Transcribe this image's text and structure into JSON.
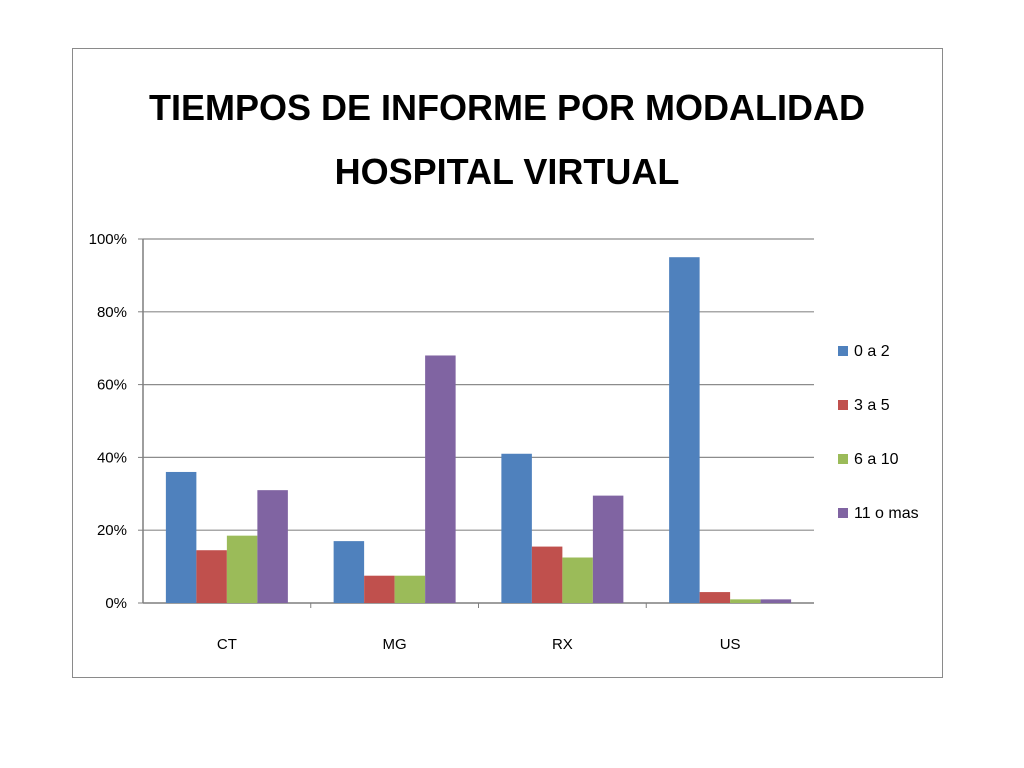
{
  "chart_data": {
    "type": "bar",
    "title_lines": [
      "TIEMPOS DE INFORME POR MODALIDAD",
      "HOSPITAL VIRTUAL"
    ],
    "categories": [
      "CT",
      "MG",
      "RX",
      "US"
    ],
    "series": [
      {
        "name": "0 a 2",
        "color": "#4f81bd",
        "values": [
          36,
          17,
          41,
          95
        ]
      },
      {
        "name": "3 a 5",
        "color": "#c0504d",
        "values": [
          14.5,
          7.5,
          15.5,
          3
        ]
      },
      {
        "name": "6 a 10",
        "color": "#9bbb59",
        "values": [
          18.5,
          7.5,
          12.5,
          1
        ]
      },
      {
        "name": "11 o mas",
        "color": "#8064a2",
        "values": [
          31,
          68,
          29.5,
          1
        ]
      }
    ],
    "y_ticks": [
      "0%",
      "20%",
      "40%",
      "60%",
      "80%",
      "100%"
    ],
    "ylim": [
      0,
      100
    ],
    "grid": true,
    "legend_position": "right"
  }
}
